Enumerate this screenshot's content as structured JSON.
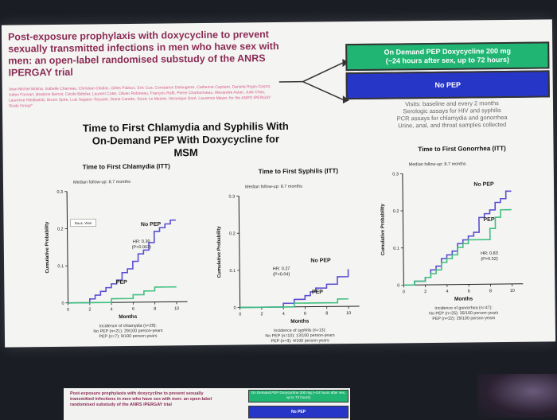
{
  "slide": {
    "paper_title": "Post-exposure prophylaxis with doxycycline to prevent sexually transmitted infections in men who have sex with men: an open-label randomised substudy of the ANRS IPERGAY trial",
    "authors": "Jean-Michel Molina, Isabelle Charreau, Christian Chidiac, Gilles Pialoux, Eric Cua, Constance Delaugerre, Catherine Capitant, Daniela Rojas-Castro, Julien Fonsart, Beatrice Bercot, Cécile Bébéar, Laurent Cotte, Olivier Robineau, François Raffi, Pierre Charbonneau, Alexandre Aslan, Julie Chas, Laurence Niedbalski, Bruno Spire, Luis Sagaon-Teyssier, Diane Carette, Soizic Le Mestre, Veronique Doré, Laurence Meyer, for the ANRS IPERGAY Study Group*",
    "arm_doxy_line1": "On Demand PEP Doxycycline 200 mg",
    "arm_doxy_line2": "(~24 hours after sex, up to 72 hours)",
    "arm_nopep": "No PEP",
    "visits_lines": [
      "Visits: baseline and every 2 months",
      "Serologic assays for HIV and syphilis",
      "PCR assays for chlamydia and gonorrhea",
      "Urine, anal, and throat samples collected"
    ],
    "main_title_line1": "Time to First Chlamydia and Syphilis With",
    "main_title_line2": "On-Demand PEP With Doxycycline for MSM",
    "colors": {
      "doxy": "#21b573",
      "nopep": "#2637c8",
      "nopep_line": "#5a4fd0",
      "pep_line": "#3fbf7f"
    }
  },
  "bottom_slide": {
    "title": "Post-exposure prophylaxis with doxycycline to prevent sexually transmitted infections in men who have sex with men: an open-label randomised substudy of the ANRS IPERGAY trial",
    "arm_doxy": "On Demand PEP Doxycycline 200 mg (~24 hours after sex, up to 72 hours)",
    "arm_nopep": "No PEP"
  },
  "chart_data": [
    {
      "type": "line",
      "title": "Time to First Chlamydia (ITT)",
      "subtitle": "Median follow-up: 8.7 months",
      "xlabel": "Months",
      "ylabel": "Cumulative Probability",
      "xlim": [
        0,
        11
      ],
      "ylim": [
        0,
        0.3
      ],
      "xticks": [
        "0",
        "2",
        "4",
        "6",
        "8",
        "10"
      ],
      "yticks": [
        "0",
        "0.1",
        "0.2",
        "0.3"
      ],
      "annotation_box": "Back: Wait",
      "hr_line1": "HR: 0.30",
      "hr_line2": "(P=0.003)",
      "series": [
        {
          "name": "No PEP",
          "x": [
            0,
            1,
            2,
            2.5,
            3,
            3.5,
            4,
            4.5,
            5,
            5.5,
            6,
            6.5,
            7,
            7.5,
            8,
            8.5,
            9,
            9.5,
            10
          ],
          "y": [
            0,
            0,
            0.01,
            0.02,
            0.03,
            0.04,
            0.05,
            0.06,
            0.08,
            0.09,
            0.11,
            0.13,
            0.14,
            0.16,
            0.19,
            0.2,
            0.21,
            0.22,
            0.22
          ]
        },
        {
          "name": "PEP",
          "x": [
            0,
            3,
            4,
            6,
            7,
            8,
            9.5,
            10
          ],
          "y": [
            0,
            0,
            0.01,
            0.02,
            0.03,
            0.04,
            0.04,
            0.04
          ]
        }
      ],
      "footnote": [
        "Incidence of chlamydia (n=28):",
        "No PEP (n=21): 29/100 person-years",
        "PEP (n=7): 9/100 person-years"
      ]
    },
    {
      "type": "line",
      "title": "Time to First Syphilis (ITT)",
      "subtitle": "Median follow-up: 8.7 months",
      "xlabel": "Months",
      "ylabel": "Cumulative Probability",
      "xlim": [
        0,
        11
      ],
      "ylim": [
        0,
        0.3
      ],
      "xticks": [
        "0",
        "2",
        "4",
        "6",
        "8",
        "10"
      ],
      "yticks": [
        "0",
        "0.1",
        "0.2",
        "0.3"
      ],
      "hr_line1": "HR: 0.27",
      "hr_line2": "(P=0.04)",
      "series": [
        {
          "name": "No PEP",
          "x": [
            0,
            3,
            4,
            5,
            6,
            6.5,
            7,
            8,
            9,
            10
          ],
          "y": [
            0,
            0,
            0.01,
            0.02,
            0.03,
            0.04,
            0.05,
            0.06,
            0.08,
            0.1
          ]
        },
        {
          "name": "PEP",
          "x": [
            0,
            4,
            5,
            7,
            9,
            10
          ],
          "y": [
            0,
            0,
            0.01,
            0.01,
            0.02,
            0.02
          ]
        }
      ],
      "footnote": [
        "Incidence of syphilis (n=13):",
        "No PEP (n=10): 13/100 person-years",
        "PEP (n=3): 4/100 person-years"
      ]
    },
    {
      "type": "line",
      "title": "Time to First Gonorrhea (ITT)",
      "subtitle": "Median follow-up: 8.7 months",
      "xlabel": "Months",
      "ylabel": "Cumulative Probability",
      "xlim": [
        0,
        11
      ],
      "ylim": [
        0,
        0.3
      ],
      "xticks": [
        "0",
        "2",
        "4",
        "6",
        "8",
        "10"
      ],
      "yticks": [
        "0",
        "0.1",
        "0.2",
        "0.3"
      ],
      "hr_line1": "HR: 0.83",
      "hr_line2": "(P=0.52)",
      "series": [
        {
          "name": "No PEP",
          "x": [
            0,
            1,
            2,
            2.5,
            3,
            3.5,
            4,
            4.5,
            5,
            5.5,
            6,
            6.5,
            7,
            7.5,
            8,
            8.5,
            9,
            9.5,
            10
          ],
          "y": [
            0,
            0.01,
            0.02,
            0.04,
            0.05,
            0.07,
            0.08,
            0.09,
            0.11,
            0.12,
            0.13,
            0.14,
            0.18,
            0.19,
            0.2,
            0.22,
            0.23,
            0.25,
            0.25
          ]
        },
        {
          "name": "PEP",
          "x": [
            0,
            1,
            2,
            2.5,
            3,
            3.5,
            4,
            4.5,
            5,
            5.5,
            6,
            7,
            8,
            8.5,
            9,
            10
          ],
          "y": [
            0,
            0.01,
            0.02,
            0.03,
            0.04,
            0.06,
            0.07,
            0.08,
            0.1,
            0.11,
            0.12,
            0.12,
            0.15,
            0.18,
            0.2,
            0.2
          ]
        }
      ],
      "footnote": [
        "Incidence of gonorrhea (n=47):",
        "No PEP (n=25): 35/100 person-years",
        "PEP (n=22): 29/100 person-years"
      ]
    }
  ]
}
